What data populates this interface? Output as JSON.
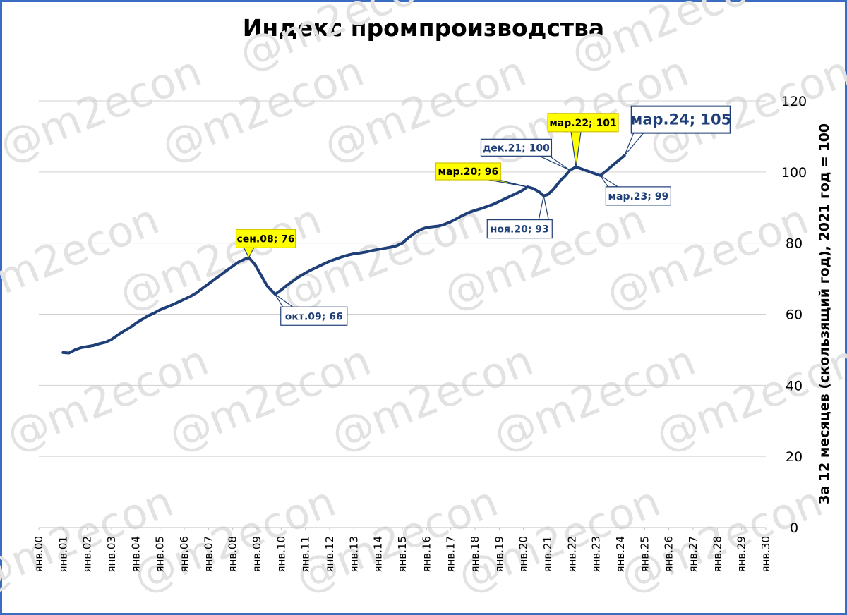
{
  "chart_data": {
    "type": "line",
    "title": "Индекс промпроизводства",
    "ylabel": "За 12 месяцев (скользящий год), 2021 год = 100",
    "xlabel": "",
    "ylim": [
      0,
      120
    ],
    "yticks": [
      0,
      20,
      40,
      60,
      80,
      100,
      120
    ],
    "y_axis_position": "right",
    "grid": true,
    "x_ticks": [
      "янв.00",
      "янв.01",
      "янв.02",
      "янв.03",
      "янв.04",
      "янв.05",
      "янв.06",
      "янв.07",
      "янв.08",
      "янв.09",
      "янв.10",
      "янв.11",
      "янв.12",
      "янв.13",
      "янв.14",
      "янв.15",
      "янв.16",
      "янв.17",
      "янв.18",
      "янв.19",
      "янв.20",
      "янв.21",
      "янв.22",
      "янв.23",
      "янв.24",
      "янв.25",
      "янв.26",
      "янв.27",
      "янв.28",
      "янв.29",
      "янв.30"
    ],
    "series": [
      {
        "color": "#1f3f78",
        "points": [
          [
            "2001-01",
            49.2
          ],
          [
            "2001-04",
            49.1
          ],
          [
            "2001-07",
            50.0
          ],
          [
            "2001-10",
            50.6
          ],
          [
            "2002-01",
            50.9
          ],
          [
            "2002-04",
            51.2
          ],
          [
            "2002-07",
            51.7
          ],
          [
            "2002-10",
            52.1
          ],
          [
            "2003-01",
            52.9
          ],
          [
            "2003-04",
            54.1
          ],
          [
            "2003-07",
            55.2
          ],
          [
            "2003-10",
            56.2
          ],
          [
            "2004-01",
            57.4
          ],
          [
            "2004-04",
            58.5
          ],
          [
            "2004-07",
            59.5
          ],
          [
            "2004-10",
            60.3
          ],
          [
            "2005-01",
            61.2
          ],
          [
            "2005-04",
            61.9
          ],
          [
            "2005-07",
            62.6
          ],
          [
            "2005-10",
            63.4
          ],
          [
            "2006-01",
            64.2
          ],
          [
            "2006-04",
            65.0
          ],
          [
            "2006-07",
            66.0
          ],
          [
            "2006-10",
            67.3
          ],
          [
            "2007-01",
            68.5
          ],
          [
            "2007-04",
            69.8
          ],
          [
            "2007-07",
            71.0
          ],
          [
            "2007-10",
            72.3
          ],
          [
            "2008-01",
            73.5
          ],
          [
            "2008-04",
            74.7
          ],
          [
            "2008-07",
            75.5
          ],
          [
            "2008-09",
            75.9
          ],
          [
            "2008-12",
            74.0
          ],
          [
            "2009-03",
            71.0
          ],
          [
            "2009-06",
            68.0
          ],
          [
            "2009-10",
            65.6
          ],
          [
            "2010-01",
            66.8
          ],
          [
            "2010-04",
            68.2
          ],
          [
            "2010-07",
            69.4
          ],
          [
            "2010-10",
            70.6
          ],
          [
            "2011-01",
            71.6
          ],
          [
            "2011-04",
            72.5
          ],
          [
            "2011-07",
            73.3
          ],
          [
            "2011-10",
            74.1
          ],
          [
            "2012-01",
            74.9
          ],
          [
            "2012-04",
            75.5
          ],
          [
            "2012-07",
            76.1
          ],
          [
            "2012-10",
            76.6
          ],
          [
            "2013-01",
            77.0
          ],
          [
            "2013-04",
            77.2
          ],
          [
            "2013-07",
            77.5
          ],
          [
            "2013-10",
            77.9
          ],
          [
            "2014-01",
            78.2
          ],
          [
            "2014-04",
            78.5
          ],
          [
            "2014-07",
            78.8
          ],
          [
            "2014-10",
            79.2
          ],
          [
            "2015-01",
            80.0
          ],
          [
            "2015-04",
            81.5
          ],
          [
            "2015-07",
            82.8
          ],
          [
            "2015-10",
            83.8
          ],
          [
            "2016-01",
            84.4
          ],
          [
            "2016-04",
            84.6
          ],
          [
            "2016-07",
            84.8
          ],
          [
            "2016-10",
            85.3
          ],
          [
            "2017-01",
            86.0
          ],
          [
            "2017-04",
            86.9
          ],
          [
            "2017-07",
            87.8
          ],
          [
            "2017-10",
            88.6
          ],
          [
            "2018-01",
            89.2
          ],
          [
            "2018-04",
            89.7
          ],
          [
            "2018-07",
            90.3
          ],
          [
            "2018-10",
            90.9
          ],
          [
            "2019-01",
            91.7
          ],
          [
            "2019-04",
            92.5
          ],
          [
            "2019-07",
            93.3
          ],
          [
            "2019-10",
            94.1
          ],
          [
            "2020-01",
            95.0
          ],
          [
            "2020-03",
            95.8
          ],
          [
            "2020-06",
            95.3
          ],
          [
            "2020-09",
            94.3
          ],
          [
            "2020-11",
            93.3
          ],
          [
            "2021-01",
            93.6
          ],
          [
            "2021-04",
            95.2
          ],
          [
            "2021-07",
            97.4
          ],
          [
            "2021-10",
            99.1
          ],
          [
            "2021-12",
            100.5
          ],
          [
            "2022-03",
            101.4
          ],
          [
            "2022-06",
            100.8
          ],
          [
            "2022-09",
            100.2
          ],
          [
            "2022-12",
            99.6
          ],
          [
            "2023-03",
            99.0
          ],
          [
            "2023-06",
            100.3
          ],
          [
            "2023-09",
            101.8
          ],
          [
            "2023-12",
            103.2
          ],
          [
            "2024-03",
            104.6
          ]
        ]
      }
    ],
    "annotations": [
      {
        "text": "сен.08; 76",
        "x": "2008-09",
        "y": 75.9,
        "style": "highlight"
      },
      {
        "text": "окт.09; 66",
        "x": "2009-10",
        "y": 65.6,
        "style": "box"
      },
      {
        "text": "мар.20; 96",
        "x": "2020-03",
        "y": 95.8,
        "style": "highlight"
      },
      {
        "text": "ноя.20; 93",
        "x": "2020-11",
        "y": 93.3,
        "style": "box"
      },
      {
        "text": "дек.21; 100",
        "x": "2021-12",
        "y": 100.5,
        "style": "box"
      },
      {
        "text": "мар.22; 101",
        "x": "2022-03",
        "y": 101.4,
        "style": "highlight"
      },
      {
        "text": "мар.23; 99",
        "x": "2023-03",
        "y": 99.0,
        "style": "box"
      },
      {
        "text": "мар.24; 105",
        "x": "2024-03",
        "y": 104.6,
        "style": "box-large"
      }
    ],
    "watermark": "@m2econ",
    "colors": {
      "line": "#1f3f78",
      "grid": "#d0d0d0",
      "highlight_fill": "#ffff00",
      "box_border": "#1f3f78",
      "frame": "#3a6cc2"
    }
  }
}
